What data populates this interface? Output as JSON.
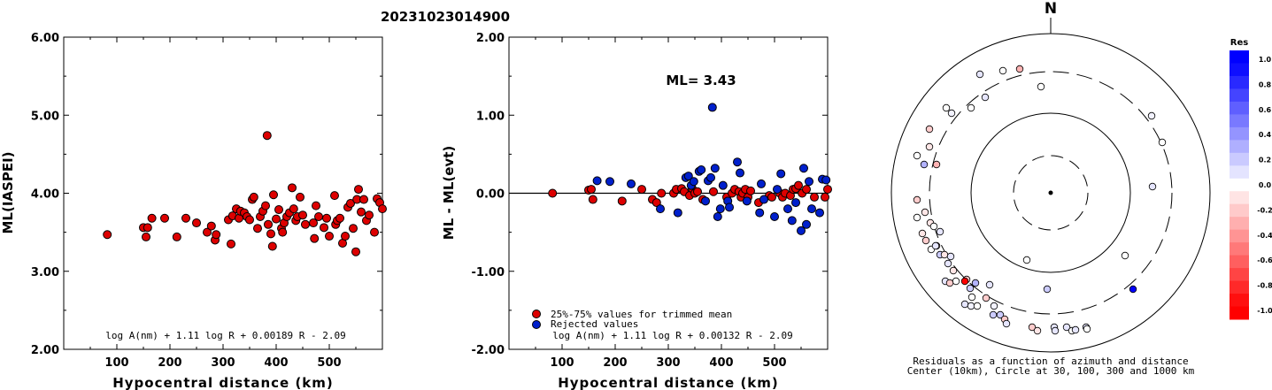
{
  "title": "20231023014900",
  "colors": {
    "red": "#dd0000",
    "blue": "#0020cc"
  },
  "chart_data": [
    {
      "type": "scatter",
      "xlabel": "Hypocentral distance (km)",
      "ylabel": "ML(IASPEI)",
      "xlim": [
        0,
        600
      ],
      "ylim": [
        2.0,
        6.0
      ],
      "xticks": [
        100,
        200,
        300,
        400,
        500
      ],
      "yticks": [
        "2.00",
        "3.00",
        "4.00",
        "5.00",
        "6.00"
      ],
      "formula": "log A(nm) + 1.11 log R + 0.00189 R - 2.09",
      "points": [
        [
          82,
          3.47
        ],
        [
          150,
          3.56
        ],
        [
          155,
          3.44
        ],
        [
          158,
          3.56
        ],
        [
          166,
          3.68
        ],
        [
          190,
          3.68
        ],
        [
          213,
          3.44
        ],
        [
          230,
          3.68
        ],
        [
          250,
          3.62
        ],
        [
          270,
          3.5
        ],
        [
          278,
          3.58
        ],
        [
          285,
          3.4
        ],
        [
          287,
          3.47
        ],
        [
          310,
          3.66
        ],
        [
          315,
          3.35
        ],
        [
          318,
          3.71
        ],
        [
          325,
          3.8
        ],
        [
          330,
          3.68
        ],
        [
          333,
          3.77
        ],
        [
          340,
          3.75
        ],
        [
          345,
          3.7
        ],
        [
          350,
          3.66
        ],
        [
          355,
          3.92
        ],
        [
          358,
          3.95
        ],
        [
          365,
          3.55
        ],
        [
          370,
          3.7
        ],
        [
          375,
          3.77
        ],
        [
          380,
          3.84
        ],
        [
          383,
          4.74
        ],
        [
          385,
          3.6
        ],
        [
          390,
          3.48
        ],
        [
          393,
          3.32
        ],
        [
          395,
          3.98
        ],
        [
          400,
          3.67
        ],
        [
          405,
          3.79
        ],
        [
          410,
          3.55
        ],
        [
          412,
          3.5
        ],
        [
          415,
          3.62
        ],
        [
          420,
          3.7
        ],
        [
          425,
          3.75
        ],
        [
          430,
          4.07
        ],
        [
          433,
          3.8
        ],
        [
          437,
          3.65
        ],
        [
          440,
          3.7
        ],
        [
          445,
          3.95
        ],
        [
          450,
          3.72
        ],
        [
          455,
          3.6
        ],
        [
          470,
          3.62
        ],
        [
          472,
          3.42
        ],
        [
          475,
          3.84
        ],
        [
          480,
          3.7
        ],
        [
          490,
          3.56
        ],
        [
          495,
          3.68
        ],
        [
          500,
          3.45
        ],
        [
          510,
          3.97
        ],
        [
          512,
          3.6
        ],
        [
          515,
          3.65
        ],
        [
          520,
          3.68
        ],
        [
          525,
          3.36
        ],
        [
          530,
          3.45
        ],
        [
          535,
          3.82
        ],
        [
          540,
          3.87
        ],
        [
          545,
          3.55
        ],
        [
          550,
          3.25
        ],
        [
          552,
          3.92
        ],
        [
          555,
          4.05
        ],
        [
          560,
          3.76
        ],
        [
          565,
          3.92
        ],
        [
          570,
          3.65
        ],
        [
          575,
          3.72
        ],
        [
          585,
          3.5
        ],
        [
          590,
          3.93
        ],
        [
          595,
          3.88
        ],
        [
          600,
          3.8
        ]
      ]
    },
    {
      "type": "scatter",
      "xlabel": "Hypocentral distance (km)",
      "ylabel": "ML - ML(evt)",
      "xlim": [
        0,
        600
      ],
      "ylim": [
        -2.0,
        2.0
      ],
      "xticks": [
        100,
        200,
        300,
        400,
        500
      ],
      "yticks": [
        "-2.00",
        "-1.00",
        "0.00",
        "1.00",
        "2.00"
      ],
      "annotation": "ML= 3.43",
      "formula": "log A(nm) + 1.11 log R + 0.00132 R - 2.09",
      "legend": [
        "25%-75% values for trimmed mean",
        "Rejected values"
      ],
      "legend_position": "bottom-left",
      "series": [
        {
          "name": "25%-75% values for trimmed mean",
          "points": [
            [
              82,
              0.0
            ],
            [
              150,
              0.04
            ],
            [
              155,
              0.05
            ],
            [
              158,
              -0.08
            ],
            [
              213,
              -0.1
            ],
            [
              250,
              0.05
            ],
            [
              270,
              -0.08
            ],
            [
              278,
              -0.12
            ],
            [
              287,
              0.0
            ],
            [
              310,
              0.0
            ],
            [
              315,
              0.05
            ],
            [
              325,
              0.06
            ],
            [
              330,
              0.02
            ],
            [
              340,
              -0.03
            ],
            [
              345,
              0.06
            ],
            [
              350,
              0.0
            ],
            [
              355,
              0.02
            ],
            [
              365,
              -0.08
            ],
            [
              385,
              0.02
            ],
            [
              410,
              -0.05
            ],
            [
              420,
              0.0
            ],
            [
              425,
              0.05
            ],
            [
              433,
              0.02
            ],
            [
              437,
              -0.05
            ],
            [
              440,
              0.0
            ],
            [
              445,
              0.05
            ],
            [
              450,
              -0.05
            ],
            [
              455,
              0.03
            ],
            [
              470,
              -0.12
            ],
            [
              490,
              -0.03
            ],
            [
              495,
              -0.05
            ],
            [
              510,
              0.0
            ],
            [
              515,
              -0.05
            ],
            [
              520,
              0.0
            ],
            [
              530,
              -0.03
            ],
            [
              535,
              0.05
            ],
            [
              540,
              0.06
            ],
            [
              545,
              0.1
            ],
            [
              552,
              0.0
            ],
            [
              560,
              0.05
            ],
            [
              575,
              -0.05
            ],
            [
              595,
              -0.05
            ],
            [
              600,
              0.05
            ]
          ]
        },
        {
          "name": "Rejected values",
          "points": [
            [
              166,
              0.16
            ],
            [
              190,
              0.15
            ],
            [
              230,
              0.12
            ],
            [
              285,
              -0.2
            ],
            [
              318,
              -0.25
            ],
            [
              333,
              0.2
            ],
            [
              338,
              0.22
            ],
            [
              343,
              0.1
            ],
            [
              348,
              0.15
            ],
            [
              358,
              0.28
            ],
            [
              362,
              0.3
            ],
            [
              370,
              -0.1
            ],
            [
              375,
              0.16
            ],
            [
              380,
              0.2
            ],
            [
              383,
              1.1
            ],
            [
              388,
              0.32
            ],
            [
              393,
              -0.3
            ],
            [
              398,
              -0.2
            ],
            [
              403,
              0.1
            ],
            [
              412,
              -0.1
            ],
            [
              415,
              -0.18
            ],
            [
              430,
              0.4
            ],
            [
              435,
              0.26
            ],
            [
              448,
              -0.1
            ],
            [
              472,
              -0.25
            ],
            [
              475,
              0.12
            ],
            [
              480,
              -0.08
            ],
            [
              500,
              -0.3
            ],
            [
              505,
              0.05
            ],
            [
              512,
              0.25
            ],
            [
              525,
              -0.2
            ],
            [
              533,
              -0.35
            ],
            [
              540,
              -0.12
            ],
            [
              550,
              -0.48
            ],
            [
              555,
              0.32
            ],
            [
              560,
              -0.4
            ],
            [
              565,
              0.15
            ],
            [
              570,
              -0.2
            ],
            [
              585,
              -0.25
            ],
            [
              590,
              0.18
            ],
            [
              597,
              0.17
            ]
          ]
        }
      ]
    },
    {
      "type": "polar-scatter",
      "north_label": "N",
      "caption": [
        "Residuals as a function of azimuth and distance",
        "Center (10km), Circle at 30, 100, 300 and 1000 km"
      ],
      "colorbar": {
        "title": "Res",
        "ticks": [
          "1.0",
          "0.8",
          "0.6",
          "0.4",
          "0.2",
          "0.0",
          "-0.2",
          "-0.4",
          "-0.6",
          "-0.8",
          "-1.0"
        ]
      }
    }
  ]
}
